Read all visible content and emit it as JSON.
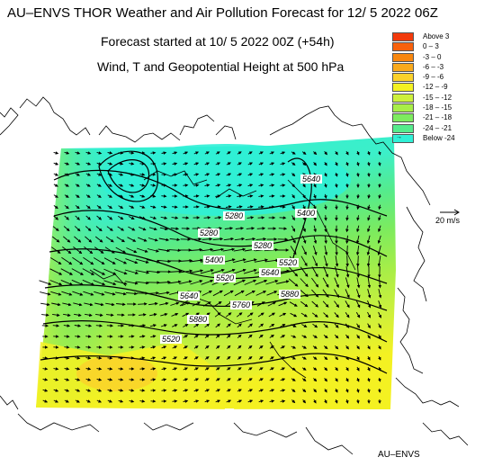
{
  "header": {
    "title": "AU–ENVS THOR Weather and Air Pollution Forecast for 12/ 5 2022  06Z",
    "forecast_start": "Forecast started at 10/ 5 2022  00Z (+54h)",
    "field": "Wind, T and Geopotential Height at 500 hPa"
  },
  "legend": {
    "items": [
      {
        "label": "Above   3",
        "color": "#f23a0c"
      },
      {
        "label": "0  –   3",
        "color": "#f7610c"
      },
      {
        "label": "-3  –   0",
        "color": "#f8870f"
      },
      {
        "label": "-6  –  -3",
        "color": "#f9aa1c"
      },
      {
        "label": "-9  –  -6",
        "color": "#fbd12b"
      },
      {
        "label": "-12  –  -9",
        "color": "#f4f122"
      },
      {
        "label": "-15  – -12",
        "color": "#cdf03c"
      },
      {
        "label": "-18  – -15",
        "color": "#a8ee47"
      },
      {
        "label": "-21  – -18",
        "color": "#7deb5e"
      },
      {
        "label": "-24  – -21",
        "color": "#55eb8c"
      },
      {
        "label": "Below  -24",
        "color": "#2ff0d6",
        "icon": "arrow-icon"
      }
    ]
  },
  "wind_scale": {
    "label": "20 m/s"
  },
  "credit": "AU–ENVS",
  "contour_labels": [
    "5280",
    "5280",
    "5280",
    "5400",
    "5520",
    "5520",
    "5400",
    "5640",
    "5640",
    "5760",
    "5880",
    "5880",
    "5520",
    "5640"
  ]
}
